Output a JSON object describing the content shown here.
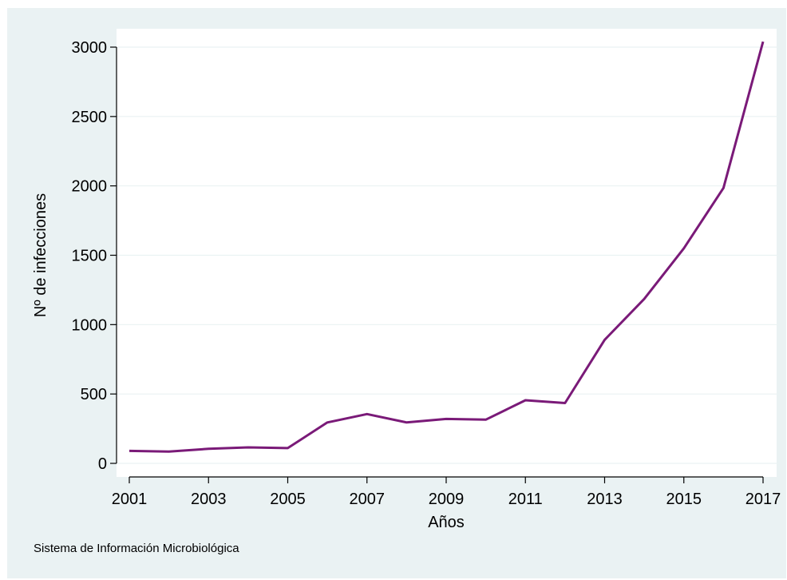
{
  "chart_data": {
    "type": "line",
    "title": "",
    "xlabel": "Años",
    "ylabel": "Nº de infecciones",
    "x": [
      2001,
      2002,
      2003,
      2004,
      2005,
      2006,
      2007,
      2008,
      2009,
      2010,
      2011,
      2012,
      2013,
      2014,
      2015,
      2016,
      2017
    ],
    "series": [
      {
        "values": [
          90,
          85,
          105,
          115,
          110,
          295,
          355,
          295,
          320,
          315,
          455,
          435,
          890,
          1185,
          1550,
          1985,
          3040
        ]
      }
    ],
    "xticks": [
      2001,
      2003,
      2005,
      2007,
      2009,
      2011,
      2013,
      2015,
      2017
    ],
    "yticks": [
      0,
      500,
      1000,
      1500,
      2000,
      2500,
      3000
    ],
    "xlim": [
      2001,
      2017
    ],
    "ylim": [
      0,
      3000
    ],
    "grid": true,
    "colors": {
      "line": "#7a1a78",
      "background": "#eaf2f3",
      "plot_bg": "#ffffff",
      "grid": "#eaf2f3"
    }
  },
  "footnote": "Sistema de Información Microbiológica"
}
